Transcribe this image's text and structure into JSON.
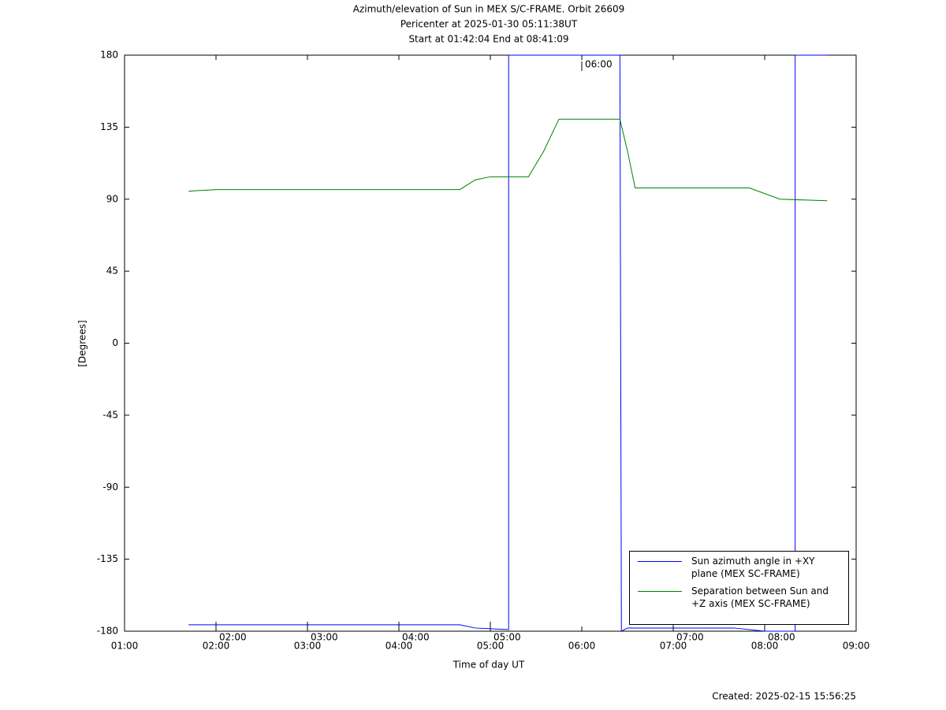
{
  "chart_data": {
    "type": "line",
    "title": "Azimuth/elevation of Sun in MEX S/C-FRAME.  Orbit 26609",
    "subtitle": [
      "Pericenter at 2025-01-30 05:11:38UT",
      "Start at 01:42:04 End at 08:41:09"
    ],
    "x_label": "Time of day UT",
    "y_label": "[Degrees]",
    "xlim": [
      "01:00",
      "09:00"
    ],
    "xticks": [
      "01:00",
      "02:00",
      "03:00",
      "04:00",
      "05:00",
      "06:00",
      "07:00",
      "08:00",
      "09:00"
    ],
    "ylim": [
      -180,
      180
    ],
    "yticks": [
      180,
      135,
      90,
      45,
      0,
      -45,
      -90,
      -135,
      -180
    ],
    "legend": "lower right",
    "series": [
      {
        "name": "Sun azimuth angle in +XY plane (MEX SC-FRAME)",
        "color": "#0000ff",
        "x": [
          "01:42",
          "04:40",
          "04:50",
          "05:12",
          "05:12",
          "06:25",
          "06:26",
          "06:30",
          "07:40",
          "08:00",
          "08:20",
          "08:20",
          "08:41"
        ],
        "values": [
          -176,
          -176,
          -178,
          -179,
          180,
          180,
          -180,
          -178,
          -178,
          -180,
          -180,
          180,
          180
        ]
      },
      {
        "name": "Separation between Sun and +Z axis (MEX SC-FRAME)",
        "color": "#008000",
        "x": [
          "01:42",
          "02:00",
          "04:40",
          "04:50",
          "05:00",
          "05:25",
          "05:35",
          "05:45",
          "06:25",
          "06:30",
          "06:35",
          "07:50",
          "08:10",
          "08:41"
        ],
        "values": [
          95,
          96,
          96,
          102,
          104,
          104,
          120,
          140,
          140,
          120,
          97,
          97,
          90,
          89
        ]
      }
    ],
    "annotations": [
      {
        "text": "02:00",
        "x": "02:00",
        "y": -180
      },
      {
        "text": "03:00",
        "x": "03:00",
        "y": -180
      },
      {
        "text": "04:00",
        "x": "04:00",
        "y": -180
      },
      {
        "text": "05:00",
        "x": "05:00",
        "y": -180
      },
      {
        "text": "06:00",
        "x": "06:00",
        "y": 180
      },
      {
        "text": "07:00",
        "x": "07:00",
        "y": -180
      },
      {
        "text": "08:00",
        "x": "08:00",
        "y": -180
      }
    ],
    "footer": "Created: 2025-02-15 15:56:25"
  }
}
